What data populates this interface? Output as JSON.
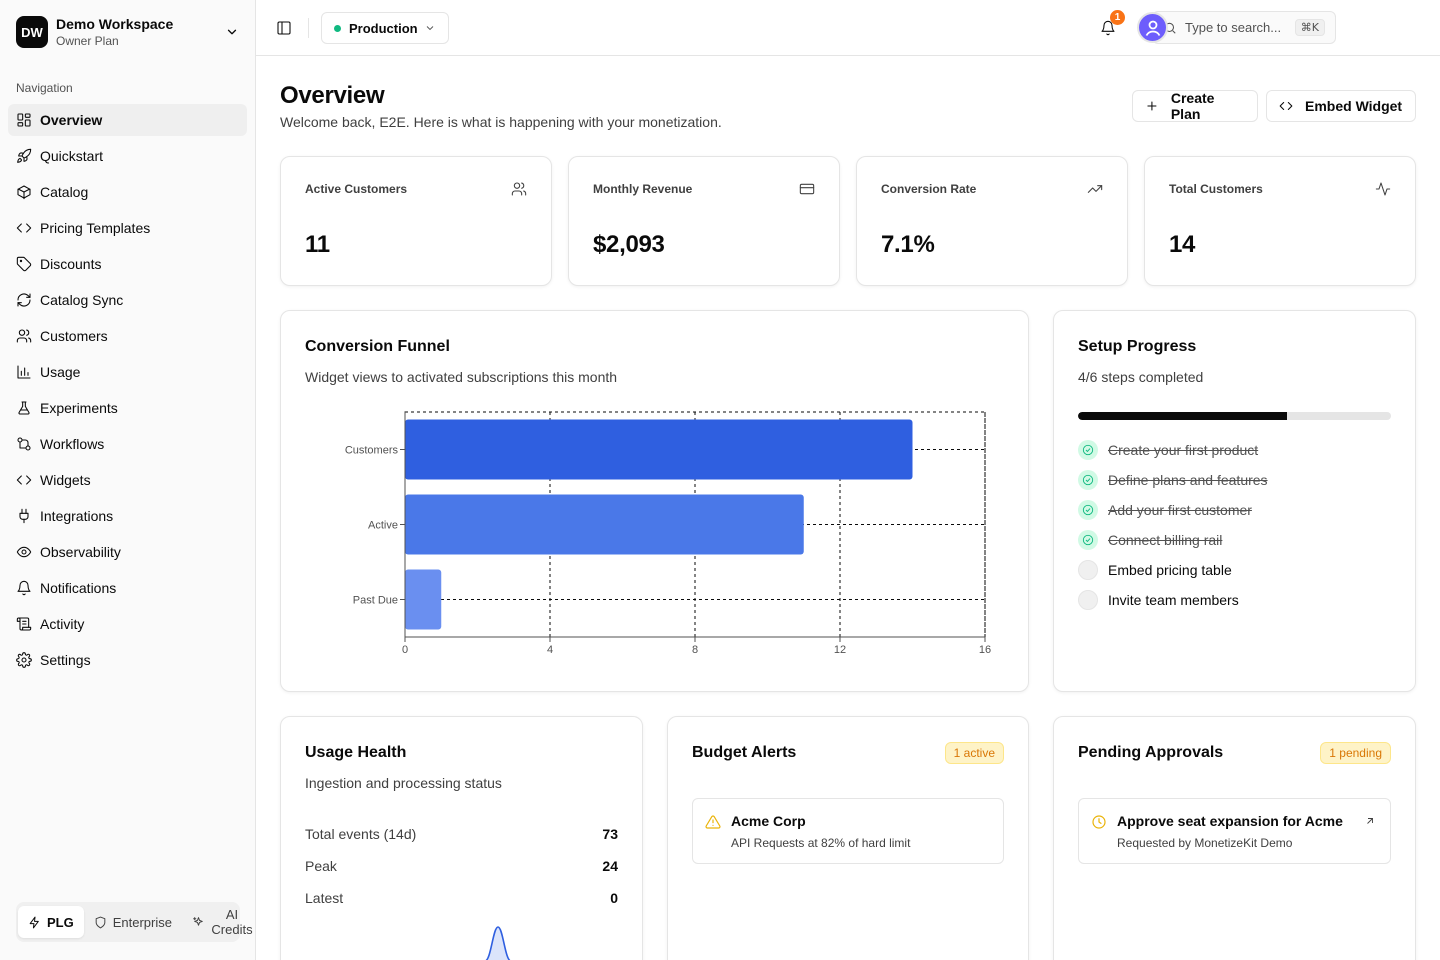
{
  "workspace": {
    "initials": "DW",
    "name": "Demo Workspace",
    "plan": "Owner Plan"
  },
  "sidebar": {
    "section_label": "Navigation",
    "items": [
      {
        "label": "Overview",
        "icon": "layout-dashboard-icon",
        "active": true
      },
      {
        "label": "Quickstart",
        "icon": "rocket-icon"
      },
      {
        "label": "Catalog",
        "icon": "package-icon"
      },
      {
        "label": "Pricing Templates",
        "icon": "code-icon"
      },
      {
        "label": "Discounts",
        "icon": "tag-icon"
      },
      {
        "label": "Catalog Sync",
        "icon": "refresh-icon"
      },
      {
        "label": "Customers",
        "icon": "users-icon"
      },
      {
        "label": "Usage",
        "icon": "bar-chart-icon"
      },
      {
        "label": "Experiments",
        "icon": "flask-icon"
      },
      {
        "label": "Workflows",
        "icon": "workflow-icon"
      },
      {
        "label": "Widgets",
        "icon": "code-icon"
      },
      {
        "label": "Integrations",
        "icon": "plug-icon"
      },
      {
        "label": "Observability",
        "icon": "eye-icon"
      },
      {
        "label": "Notifications",
        "icon": "bell-icon"
      },
      {
        "label": "Activity",
        "icon": "scroll-icon"
      },
      {
        "label": "Settings",
        "icon": "gear-icon"
      }
    ],
    "modes": {
      "plg": "PLG",
      "enterprise": "Enterprise",
      "ai_credits_1": "AI",
      "ai_credits_2": "Credits"
    }
  },
  "topbar": {
    "environment": "Production",
    "search_placeholder": "Type to search...",
    "search_shortcut": "⌘K",
    "notification_count": "1"
  },
  "header": {
    "title": "Overview",
    "subtitle": "Welcome back, E2E. Here is what is happening with your monetization.",
    "create_plan": "Create Plan",
    "embed_widget": "Embed Widget"
  },
  "stats": [
    {
      "label": "Active Customers",
      "value": "11",
      "icon": "users-icon"
    },
    {
      "label": "Monthly Revenue",
      "value": "$2,093",
      "icon": "credit-card-icon"
    },
    {
      "label": "Conversion Rate",
      "value": "7.1%",
      "icon": "trending-up-icon"
    },
    {
      "label": "Total Customers",
      "value": "14",
      "icon": "activity-icon"
    }
  ],
  "funnel": {
    "title": "Conversion Funnel",
    "description": "Widget views to activated subscriptions this month"
  },
  "chart_data": {
    "type": "bar",
    "orientation": "horizontal",
    "categories": [
      "Customers",
      "Active",
      "Past Due"
    ],
    "values": [
      14,
      11,
      1
    ],
    "xlim": [
      0,
      16
    ],
    "xticks": [
      "0",
      "4",
      "8",
      "12",
      "16"
    ],
    "grid": true,
    "colors": [
      "#2f5fe0",
      "#4a78e8",
      "#6a8ff0"
    ]
  },
  "setup": {
    "title": "Setup Progress",
    "summary": "4/6 steps completed",
    "progress_fraction": 0.667,
    "steps": [
      {
        "label": "Create your first product",
        "done": true
      },
      {
        "label": "Define plans and features",
        "done": true
      },
      {
        "label": "Add your first customer",
        "done": true
      },
      {
        "label": "Connect billing rail",
        "done": true
      },
      {
        "label": "Embed pricing table",
        "done": false
      },
      {
        "label": "Invite team members",
        "done": false
      }
    ]
  },
  "usage": {
    "title": "Usage Health",
    "description": "Ingestion and processing status",
    "rows": [
      {
        "label": "Total events (14d)",
        "value": "73"
      },
      {
        "label": "Peak",
        "value": "24"
      },
      {
        "label": "Latest",
        "value": "0"
      }
    ]
  },
  "budget": {
    "title": "Budget Alerts",
    "badge": "1 active",
    "alert_title": "Acme Corp",
    "alert_sub": "API Requests at 82% of hard limit"
  },
  "approvals": {
    "title": "Pending Approvals",
    "badge": "1 pending",
    "item_title": "Approve seat expansion for Acme",
    "item_sub": "Requested by MonetizeKit Demo"
  }
}
